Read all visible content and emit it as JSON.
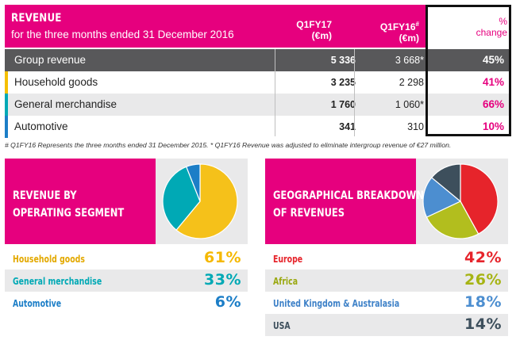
{
  "table": {
    "title": "REVENUE",
    "subtitle": "for the three months ended 31 December 2016",
    "col1": [
      "Q1FY17",
      "(€m)"
    ],
    "col2": [
      "Q1FY16",
      "#",
      "(€m)"
    ],
    "col3": [
      "%",
      "change"
    ],
    "rows": [
      {
        "label": "Group revenue",
        "v1": "5 336",
        "v2": "3 668*",
        "pct": "45%",
        "color": "#58585a"
      },
      {
        "label": "Household goods",
        "v1": "3 235",
        "v2": "2 298",
        "pct": "41%",
        "color": "#f5c000"
      },
      {
        "label": "General merchandise",
        "v1": "1 760",
        "v2": "1 060*",
        "pct": "66%",
        "color": "#00a9b5"
      },
      {
        "label": "Automotive",
        "v1": "341",
        "v2": "310",
        "pct": "10%",
        "color": "#1c7ec7"
      }
    ],
    "footnote": "# Q1FY16 Represents the three months ended 31 December 2015. * Q1FY16 Revenue was adjusted to eliminate intergroup revenue of €27 million."
  },
  "chart_data": [
    {
      "type": "pie",
      "title": "REVENUE BY OPERATING SEGMENT",
      "categories": [
        "Household goods",
        "General merchandise",
        "Automotive"
      ],
      "values": [
        61,
        33,
        6
      ],
      "labels": [
        "61%",
        "33%",
        "6%"
      ],
      "colors": [
        "#f5c11a",
        "#00a9b5",
        "#1c7ec7"
      ]
    },
    {
      "type": "pie",
      "title": "GEOGRAPHICAL BREAKDOWN OF REVENUES",
      "categories": [
        "Europe",
        "Africa",
        "United Kingdom & Australasia",
        "USA"
      ],
      "values": [
        42,
        26,
        18,
        14
      ],
      "labels": [
        "42%",
        "26%",
        "18%",
        "14%"
      ],
      "colors": [
        "#e6242b",
        "#b2be1e",
        "#4c8ed0",
        "#3d4f5c"
      ]
    }
  ]
}
